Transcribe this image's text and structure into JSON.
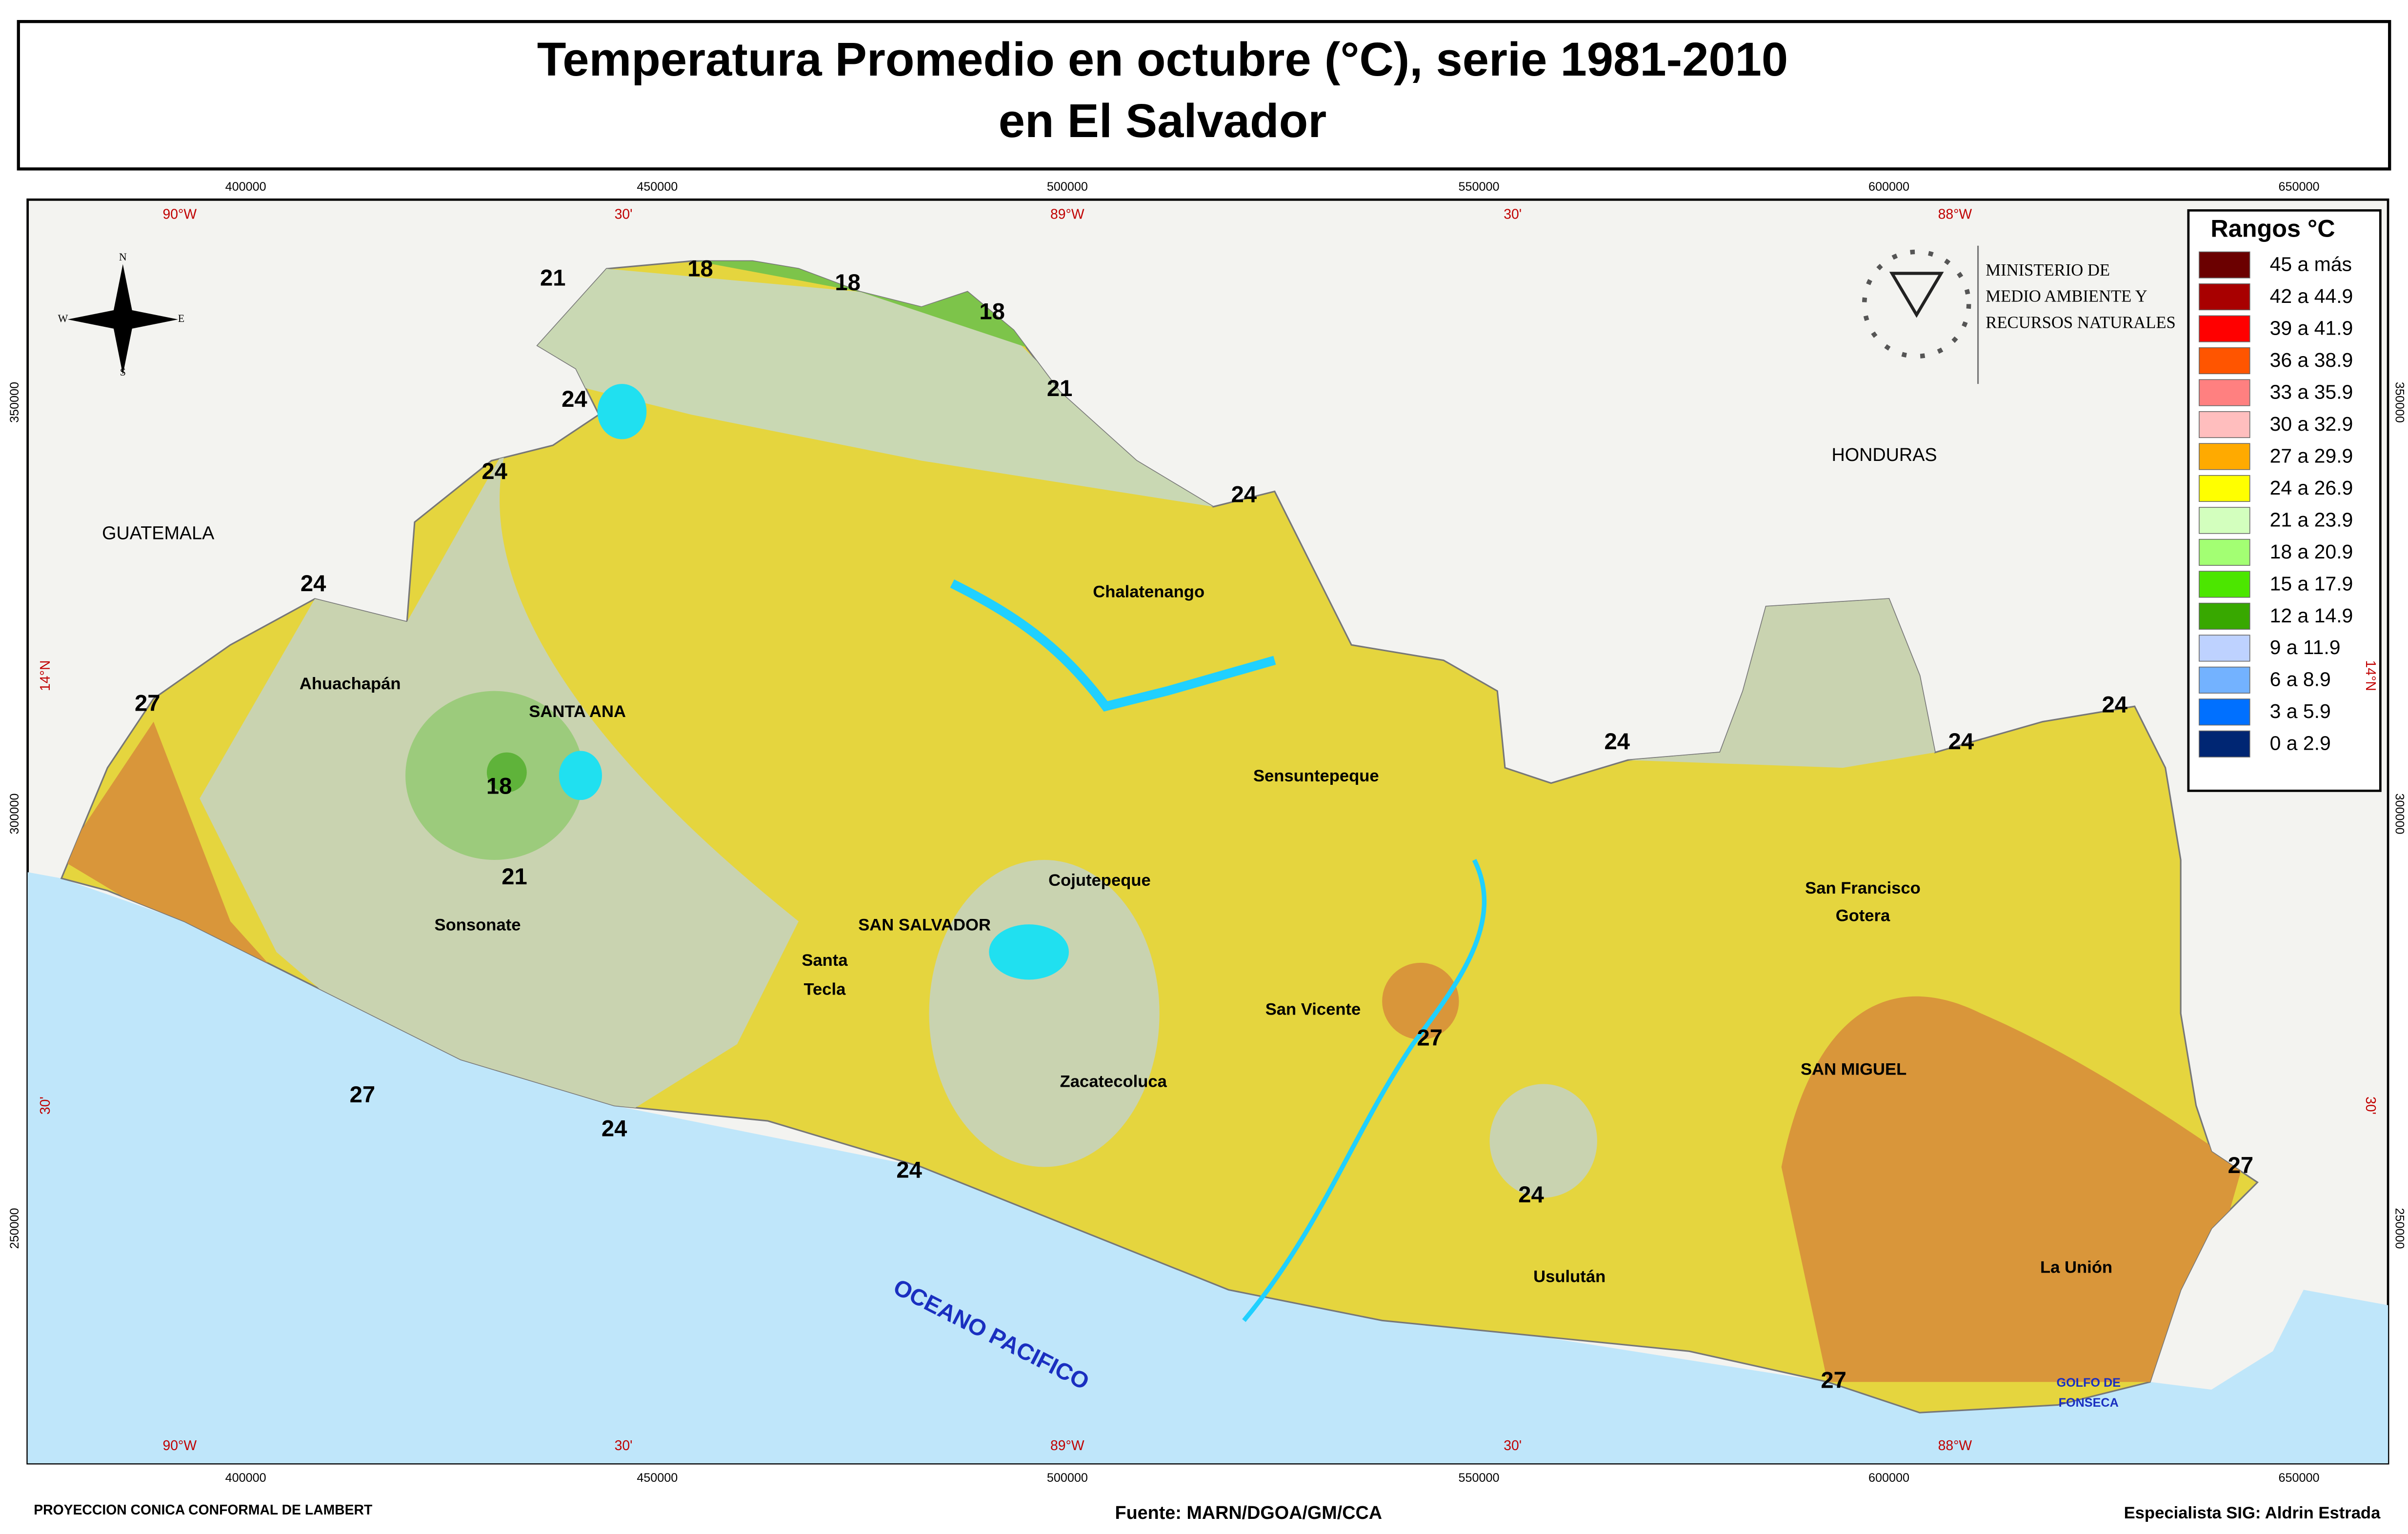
{
  "title": [
    "Temperatura Promedio en octubre (°C), serie 1981-2010",
    "en El Salvador"
  ],
  "easting": [
    "400000",
    "450000",
    "500000",
    "550000",
    "600000",
    "650000"
  ],
  "longitude": [
    "90°W",
    "30'",
    "89°W",
    "30'",
    "88°W"
  ],
  "northing": [
    "350000",
    "300000",
    "250000"
  ],
  "latitude": [
    "14°N",
    "30'"
  ],
  "compass": [
    "N",
    "E",
    "S",
    "W"
  ],
  "institution": [
    "MINISTERIO DE",
    "MEDIO AMBIENTE Y",
    "RECURSOS NATURALES"
  ],
  "legend": {
    "title": "Rangos °C",
    "items": [
      {
        "label": "45 a más",
        "color": "#6b0000"
      },
      {
        "label": "42 a 44.9",
        "color": "#a80000"
      },
      {
        "label": "39 a 41.9",
        "color": "#ff0000"
      },
      {
        "label": "36 a 38.9",
        "color": "#ff5500"
      },
      {
        "label": "33 a 35.9",
        "color": "#ff8080"
      },
      {
        "label": "30 a 32.9",
        "color": "#ffbebe"
      },
      {
        "label": "27 a 29.9",
        "color": "#ffaa00"
      },
      {
        "label": "24 a 26.9",
        "color": "#ffff00"
      },
      {
        "label": "21 a 23.9",
        "color": "#d3ffbe"
      },
      {
        "label": "18 a 20.9",
        "color": "#a3ff73"
      },
      {
        "label": "15 a 17.9",
        "color": "#4ce600"
      },
      {
        "label": "12 a 14.9",
        "color": "#38a800"
      },
      {
        "label": "9 a 11.9",
        "color": "#bed2ff"
      },
      {
        "label": "6 a 8.9",
        "color": "#73b2ff"
      },
      {
        "label": "3 a 5.9",
        "color": "#0070ff"
      },
      {
        "label": "0 a 2.9",
        "color": "#002673"
      }
    ]
  },
  "places": [
    "GUATEMALA",
    "HONDURAS",
    "Chalatenango",
    "Ahuachapán",
    "SANTA ANA",
    "Sensuntepeque",
    "Cojutepeque",
    "San Francisco",
    "Gotera",
    "SAN SALVADOR",
    "Sonsonate",
    "Santa",
    "Tecla",
    "San Vicente",
    "SAN MIGUEL",
    "Zacatecoluca",
    "Usulután",
    "La Unión",
    "GOLFO DE",
    "FONSECA",
    "OCEANO PACIFICO"
  ],
  "contour_labels": [
    21,
    18,
    18,
    18,
    21,
    24,
    24,
    24,
    24,
    27,
    18,
    21,
    27,
    24,
    24,
    27,
    24,
    24,
    24,
    24,
    27,
    27
  ],
  "footer": {
    "left": "PROYECCION CONICA CONFORMAL DE LAMBERT",
    "center": "Fuente: MARN/DGOA/GM/CCA",
    "right": "Especialista SIG: Aldrin Estrada"
  }
}
